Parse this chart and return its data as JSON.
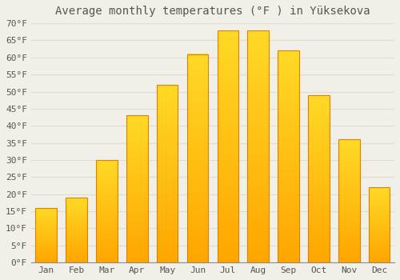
{
  "title": "Average monthly temperatures (°F ) in Yüksekova",
  "months": [
    "Jan",
    "Feb",
    "Mar",
    "Apr",
    "May",
    "Jun",
    "Jul",
    "Aug",
    "Sep",
    "Oct",
    "Nov",
    "Dec"
  ],
  "values": [
    16,
    19,
    30,
    43,
    52,
    61,
    68,
    68,
    62,
    49,
    36,
    22
  ],
  "bar_color_face": "#FFC020",
  "bar_color_edge": "#E08000",
  "ylim": [
    0,
    70
  ],
  "yticks": [
    0,
    5,
    10,
    15,
    20,
    25,
    30,
    35,
    40,
    45,
    50,
    55,
    60,
    65,
    70
  ],
  "ytick_labels": [
    "0°F",
    "5°F",
    "10°F",
    "15°F",
    "20°F",
    "25°F",
    "30°F",
    "35°F",
    "40°F",
    "45°F",
    "50°F",
    "55°F",
    "60°F",
    "65°F",
    "70°F"
  ],
  "background_color": "#F0F0E8",
  "grid_color": "#DDDDD0",
  "title_fontsize": 10,
  "tick_fontsize": 8,
  "bar_width": 0.7,
  "font_color": "#555555"
}
